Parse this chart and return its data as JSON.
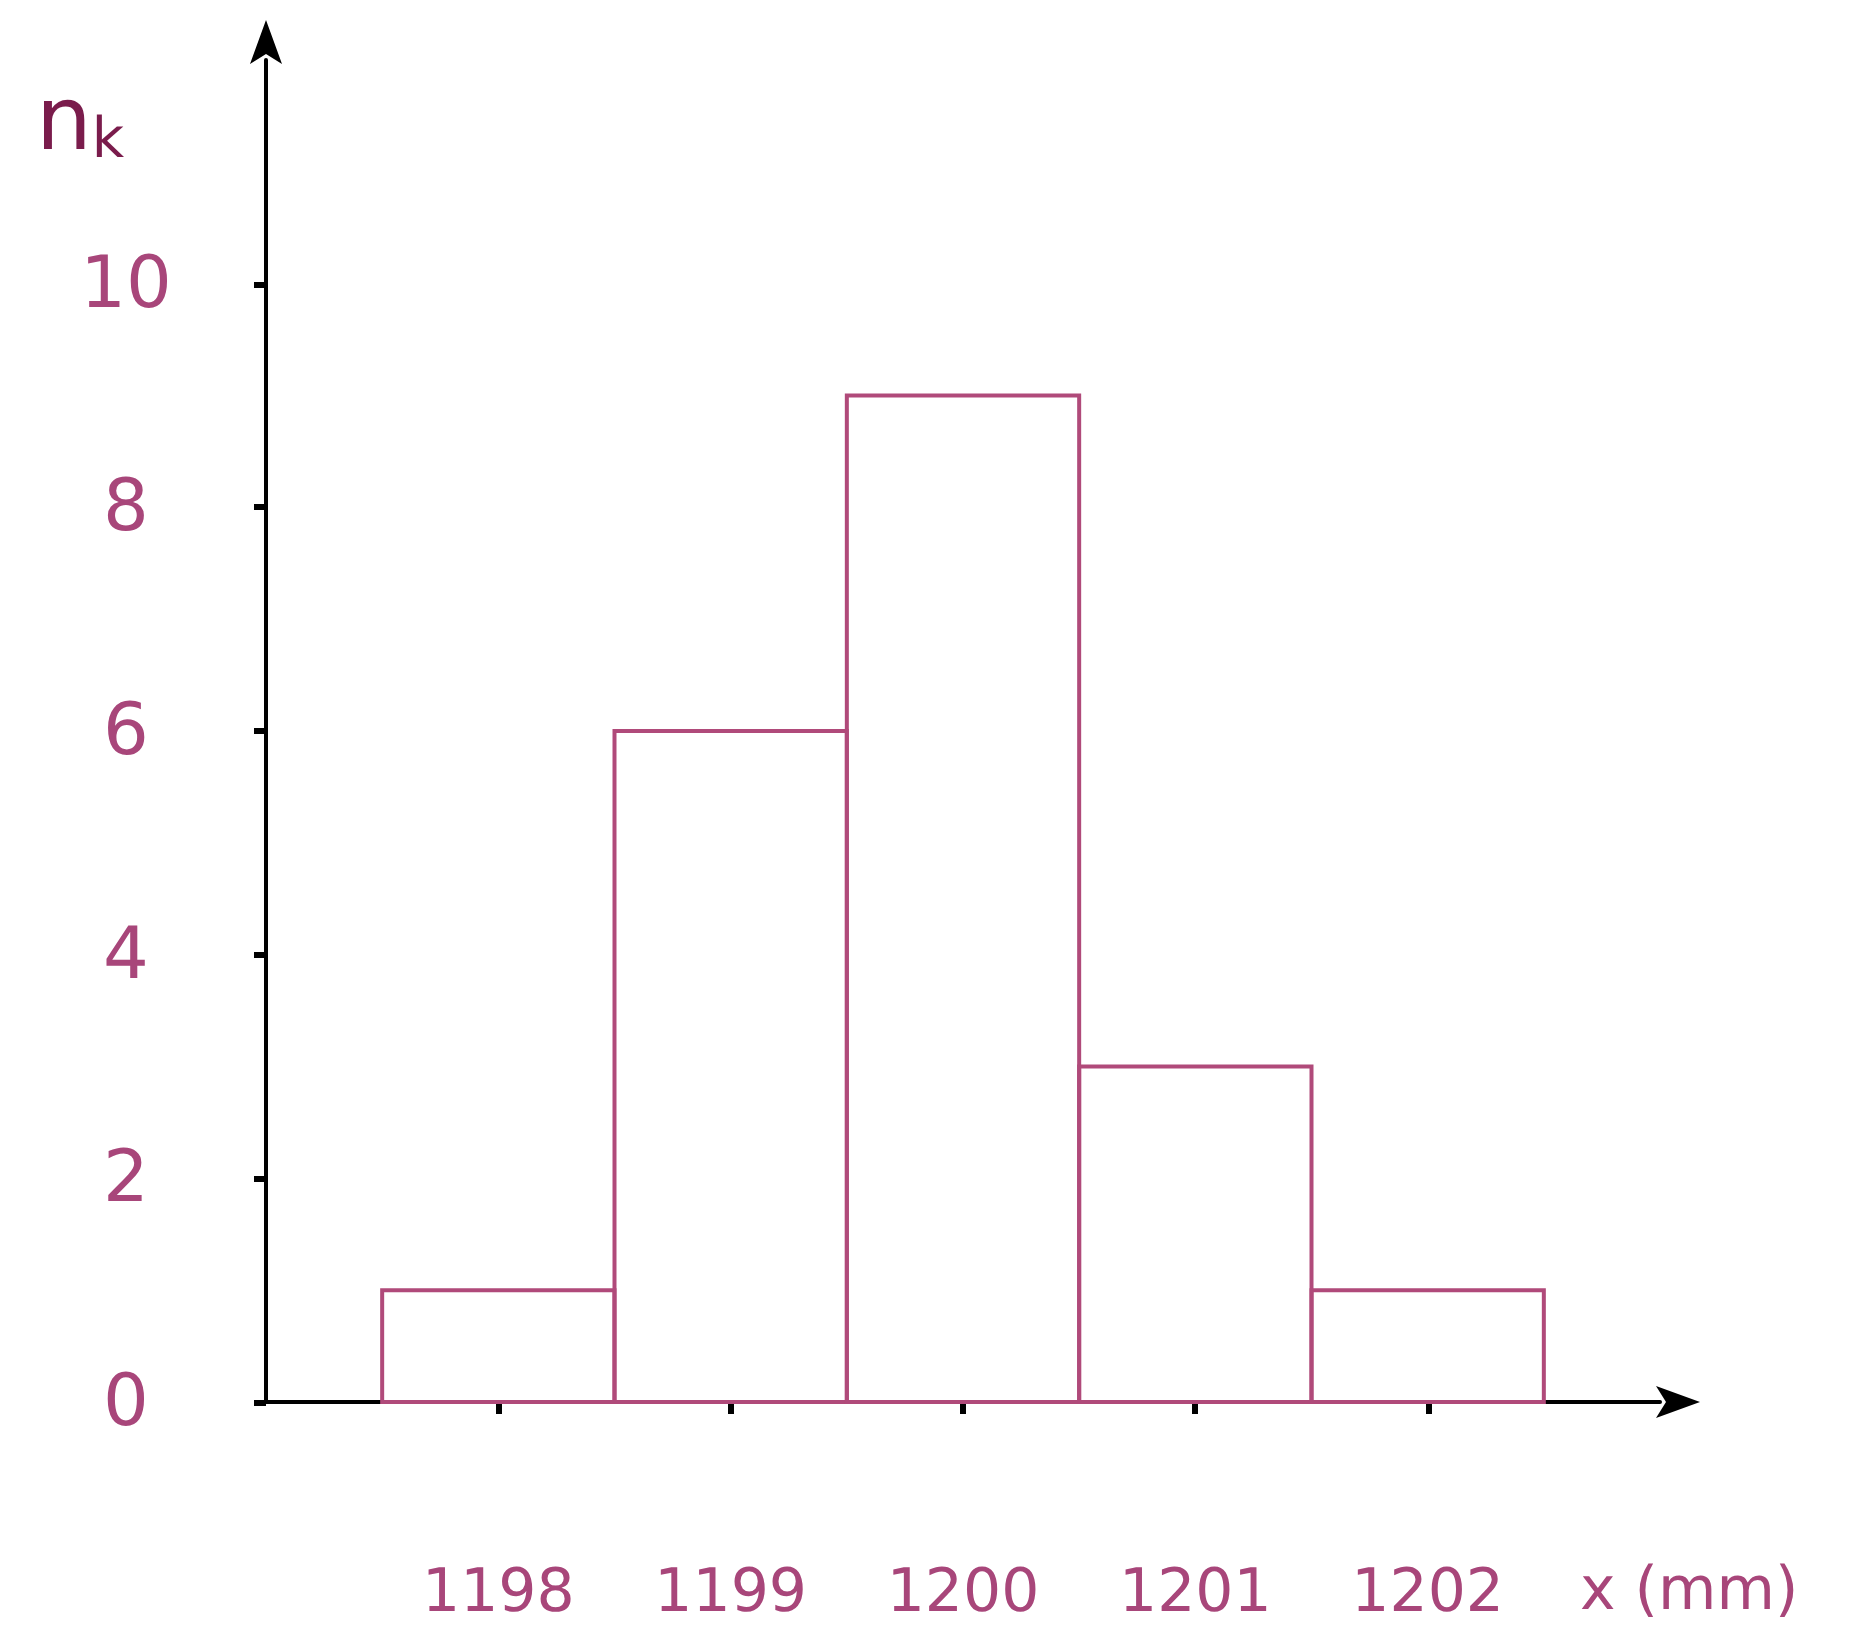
{
  "chart_data": {
    "type": "histogram",
    "xlabel": "x (mm)",
    "ylabel": "n$_{k}$",
    "bins": [
      1197.5,
      1198.5,
      1199.5,
      1200.5,
      1201.5,
      1202.5
    ],
    "values": [
      1,
      6,
      9,
      3,
      1
    ],
    "color": "#b04a7a",
    "xlim": [
      1197,
      1203
    ],
    "xticks": [
      1198,
      1199,
      1200,
      1201,
      1202
    ],
    "ylim": [
      0,
      12
    ],
    "yticks": [
      0,
      2,
      4,
      6,
      8,
      10
    ],
    "grid": false
  }
}
